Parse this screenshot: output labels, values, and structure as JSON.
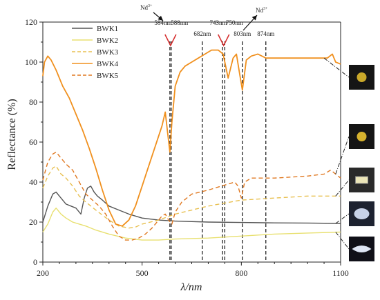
{
  "chart_data": {
    "type": "line",
    "xlabel": "λ/nm",
    "ylabel": "Reflectance (%)",
    "xlim": [
      200,
      1100
    ],
    "ylim": [
      0,
      120
    ],
    "xticks": [
      200,
      500,
      800,
      1100
    ],
    "yticks": [
      0,
      20,
      40,
      60,
      80,
      100,
      120
    ],
    "legend_position": "top-left",
    "series": [
      {
        "name": "BWK1",
        "color": "#555555",
        "dash": "solid",
        "points": [
          [
            200,
            20
          ],
          [
            215,
            28
          ],
          [
            230,
            34
          ],
          [
            240,
            35
          ],
          [
            255,
            32
          ],
          [
            270,
            29
          ],
          [
            285,
            28
          ],
          [
            300,
            27
          ],
          [
            315,
            24
          ],
          [
            325,
            32
          ],
          [
            335,
            37
          ],
          [
            345,
            38
          ],
          [
            355,
            35
          ],
          [
            365,
            33
          ],
          [
            380,
            31
          ],
          [
            400,
            28
          ],
          [
            430,
            26
          ],
          [
            460,
            24
          ],
          [
            500,
            22
          ],
          [
            550,
            21
          ],
          [
            600,
            20.5
          ],
          [
            700,
            20
          ],
          [
            800,
            19.8
          ],
          [
            900,
            19.6
          ],
          [
            1000,
            19.5
          ],
          [
            1100,
            19.3
          ]
        ]
      },
      {
        "name": "BWK2",
        "color": "#e8e070",
        "dash": "solid",
        "points": [
          [
            200,
            15
          ],
          [
            215,
            19
          ],
          [
            230,
            25
          ],
          [
            240,
            27
          ],
          [
            255,
            24
          ],
          [
            270,
            22
          ],
          [
            290,
            20
          ],
          [
            310,
            19
          ],
          [
            330,
            18
          ],
          [
            360,
            16
          ],
          [
            400,
            14
          ],
          [
            450,
            12
          ],
          [
            500,
            11
          ],
          [
            550,
            11
          ],
          [
            600,
            11.5
          ],
          [
            700,
            12
          ],
          [
            800,
            13
          ],
          [
            900,
            14
          ],
          [
            1000,
            14.5
          ],
          [
            1100,
            15
          ]
        ]
      },
      {
        "name": "BWK3",
        "color": "#e8c050",
        "dash": "dashed",
        "points": [
          [
            200,
            37
          ],
          [
            215,
            43
          ],
          [
            230,
            47
          ],
          [
            240,
            48
          ],
          [
            255,
            44
          ],
          [
            270,
            42
          ],
          [
            290,
            38
          ],
          [
            310,
            33
          ],
          [
            330,
            30
          ],
          [
            360,
            26
          ],
          [
            400,
            21
          ],
          [
            430,
            18
          ],
          [
            460,
            17
          ],
          [
            480,
            17.5
          ],
          [
            500,
            19
          ],
          [
            550,
            21
          ],
          [
            600,
            24
          ],
          [
            700,
            28
          ],
          [
            800,
            31
          ],
          [
            900,
            32
          ],
          [
            1000,
            33
          ],
          [
            1100,
            33
          ]
        ]
      },
      {
        "name": "BWK4",
        "color": "#f0901e",
        "dash": "solid",
        "points": [
          [
            200,
            93
          ],
          [
            205,
            100
          ],
          [
            215,
            103
          ],
          [
            225,
            101
          ],
          [
            240,
            96
          ],
          [
            260,
            88
          ],
          [
            280,
            82
          ],
          [
            300,
            74
          ],
          [
            320,
            66
          ],
          [
            340,
            57
          ],
          [
            360,
            47
          ],
          [
            380,
            36
          ],
          [
            400,
            26
          ],
          [
            420,
            19
          ],
          [
            440,
            18
          ],
          [
            460,
            21
          ],
          [
            480,
            28
          ],
          [
            500,
            38
          ],
          [
            520,
            48
          ],
          [
            540,
            58
          ],
          [
            560,
            68
          ],
          [
            570,
            75
          ],
          [
            577,
            65
          ],
          [
            584,
            55
          ],
          [
            590,
            70
          ],
          [
            600,
            88
          ],
          [
            615,
            95
          ],
          [
            630,
            98
          ],
          [
            650,
            100
          ],
          [
            670,
            102
          ],
          [
            690,
            104
          ],
          [
            710,
            106
          ],
          [
            730,
            106
          ],
          [
            745,
            104
          ],
          [
            760,
            92
          ],
          [
            775,
            102
          ],
          [
            785,
            104
          ],
          [
            795,
            94
          ],
          [
            803,
            86
          ],
          [
            815,
            101
          ],
          [
            830,
            103
          ],
          [
            850,
            104
          ],
          [
            874,
            102
          ],
          [
            900,
            102
          ],
          [
            950,
            102
          ],
          [
            1000,
            102
          ],
          [
            1030,
            102
          ],
          [
            1060,
            102
          ],
          [
            1075,
            104
          ],
          [
            1085,
            100
          ],
          [
            1100,
            99
          ]
        ]
      },
      {
        "name": "BWK5",
        "color": "#e07820",
        "dash": "dashed",
        "points": [
          [
            200,
            41
          ],
          [
            215,
            50
          ],
          [
            230,
            54
          ],
          [
            240,
            55
          ],
          [
            255,
            52
          ],
          [
            270,
            49
          ],
          [
            290,
            46
          ],
          [
            310,
            40
          ],
          [
            330,
            34
          ],
          [
            350,
            31
          ],
          [
            370,
            28
          ],
          [
            390,
            24
          ],
          [
            410,
            18
          ],
          [
            430,
            13
          ],
          [
            450,
            11
          ],
          [
            470,
            11
          ],
          [
            490,
            12
          ],
          [
            510,
            14
          ],
          [
            530,
            17
          ],
          [
            545,
            20
          ],
          [
            560,
            23
          ],
          [
            570,
            24
          ],
          [
            580,
            21
          ],
          [
            590,
            19
          ],
          [
            600,
            25
          ],
          [
            620,
            30
          ],
          [
            650,
            34
          ],
          [
            700,
            36
          ],
          [
            740,
            38
          ],
          [
            760,
            39
          ],
          [
            780,
            40
          ],
          [
            790,
            38
          ],
          [
            800,
            32
          ],
          [
            810,
            40
          ],
          [
            830,
            42
          ],
          [
            874,
            42
          ],
          [
            900,
            42
          ],
          [
            1000,
            43
          ],
          [
            1050,
            44
          ],
          [
            1070,
            46
          ],
          [
            1085,
            44
          ],
          [
            1100,
            42
          ]
        ]
      }
    ],
    "reference_lines": [
      {
        "x": 584,
        "label": "584nm"
      },
      {
        "x": 588,
        "label": "588nm"
      },
      {
        "x": 682,
        "label": "682nm"
      },
      {
        "x": 743,
        "label": "743nm"
      },
      {
        "x": 750,
        "label": "750nm"
      },
      {
        "x": 803,
        "label": "803nm"
      },
      {
        "x": 874,
        "label": "874nm"
      }
    ],
    "annotations": [
      {
        "text": "Nd",
        "superscript": "3+",
        "near": "584nm"
      },
      {
        "text": "Nd",
        "superscript": "3+",
        "near": "750nm"
      }
    ],
    "gem_thumbnails": [
      "BWK4",
      "BWK5",
      "BWK3",
      "BWK1",
      "BWK2"
    ]
  }
}
